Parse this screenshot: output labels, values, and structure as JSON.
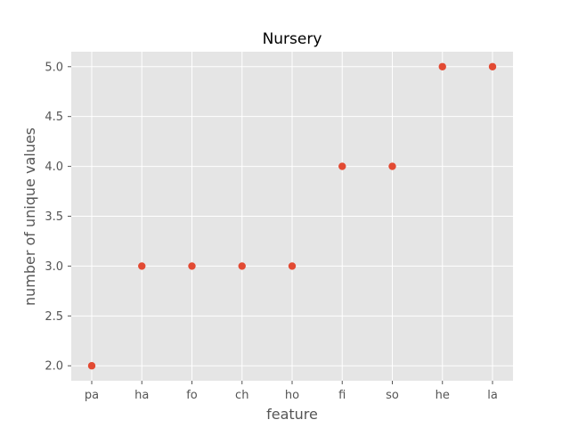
{
  "chart_data": {
    "type": "scatter",
    "title": "Nursery",
    "xlabel": "feature",
    "ylabel": "number of unique values",
    "categories": [
      "pa",
      "ha",
      "fo",
      "ch",
      "ho",
      "fi",
      "so",
      "he",
      "la"
    ],
    "values": [
      2,
      3,
      3,
      3,
      3,
      4,
      4,
      5,
      5
    ],
    "ylim": [
      1.85,
      5.15
    ],
    "yticks": [
      "2.0",
      "2.5",
      "3.0",
      "3.5",
      "4.0",
      "4.5",
      "5.0"
    ],
    "grid": true,
    "legend": "none",
    "colors": {
      "background": "#E5E5E5",
      "grid": "#FFFFFF",
      "marker": "#E24A33",
      "text": "#555555"
    }
  }
}
